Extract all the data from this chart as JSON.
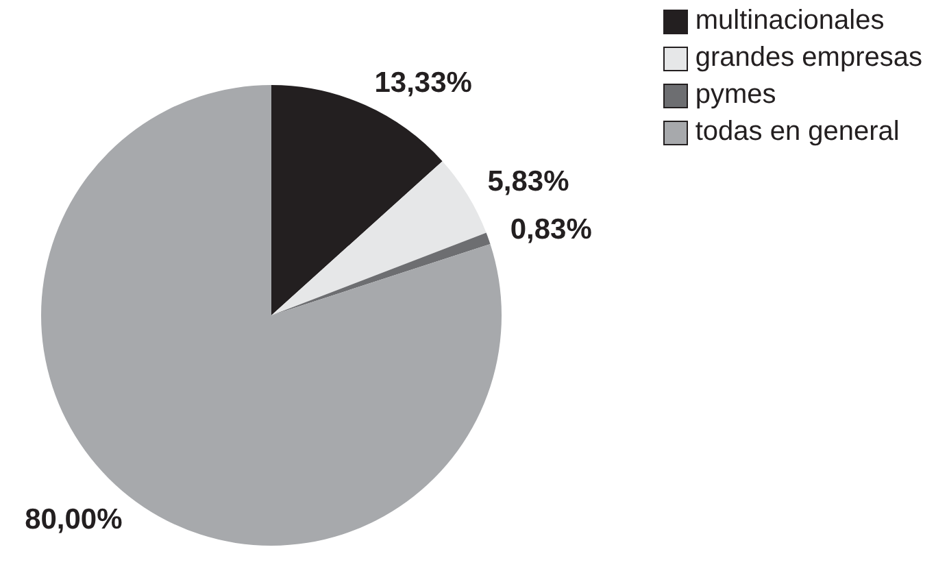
{
  "chart_data": {
    "type": "pie",
    "categories": [
      "multinacionales",
      "grandes empresas",
      "pymes",
      "todas en general"
    ],
    "values": [
      13.33,
      5.83,
      0.83,
      80.0
    ],
    "colors": [
      "#231f20",
      "#e6e7e8",
      "#6d6e71",
      "#a7a9ac"
    ],
    "value_labels": [
      "13,33%",
      "5,83%",
      "0,83%",
      "80,00%"
    ],
    "legend": "top right"
  }
}
